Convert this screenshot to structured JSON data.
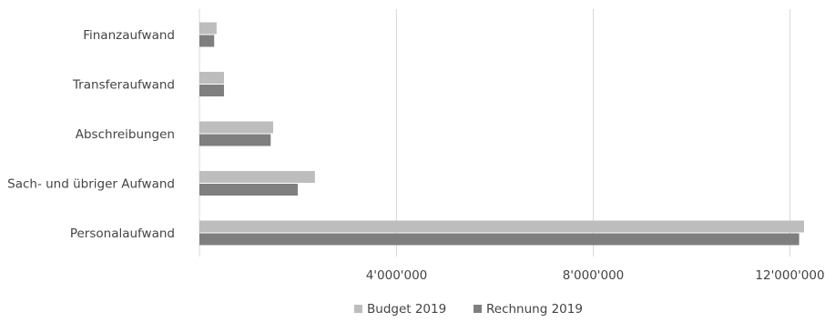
{
  "chart_data": {
    "type": "bar",
    "orientation": "horizontal",
    "categories": [
      "Finanzaufwand",
      "Transferaufwand",
      "Abschreibungen",
      "Sach- und übriger Aufwand",
      "Personalaufwand"
    ],
    "series": [
      {
        "name": "Budget 2019",
        "color": "#bdbdbd",
        "values": [
          350000,
          500000,
          1500000,
          2350000,
          12300000
        ]
      },
      {
        "name": "Rechnung 2019",
        "color": "#7f7f7f",
        "values": [
          300000,
          500000,
          1450000,
          2000000,
          12200000
        ]
      }
    ],
    "x_ticks": [
      {
        "value": 4000000,
        "label": "4'000'000"
      },
      {
        "value": 8000000,
        "label": "8'000'000"
      },
      {
        "value": 12000000,
        "label": "12'000'000"
      }
    ],
    "xlim": [
      0,
      12300000
    ],
    "grid": true,
    "legend_position": "bottom"
  }
}
